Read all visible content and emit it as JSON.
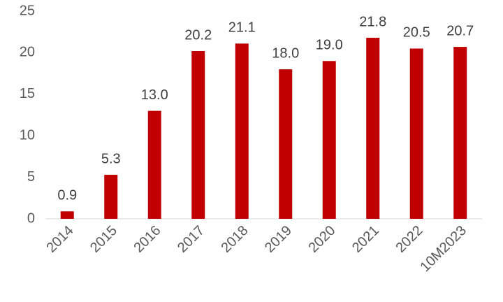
{
  "chart_data": {
    "type": "bar",
    "categories": [
      "2014",
      "2015",
      "2016",
      "2017",
      "2018",
      "2019",
      "2020",
      "2021",
      "2022",
      "10M2023"
    ],
    "values": [
      0.9,
      5.3,
      13.0,
      20.2,
      21.1,
      18.0,
      19.0,
      21.8,
      20.5,
      20.7
    ],
    "value_labels": [
      "0.9",
      "5.3",
      "13.0",
      "20.2",
      "21.1",
      "18.0",
      "19.0",
      "21.8",
      "20.5",
      "20.7"
    ],
    "color": "#c00000",
    "ylim": [
      0,
      25
    ],
    "yticks": [
      0,
      5,
      10,
      15,
      20,
      25
    ],
    "grid": false
  }
}
